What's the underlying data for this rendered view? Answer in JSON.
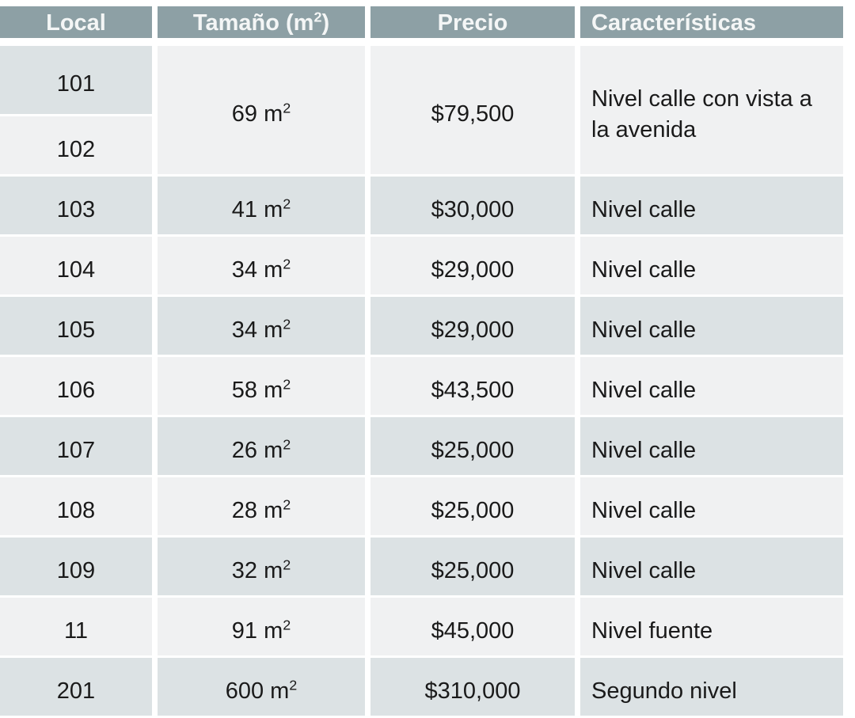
{
  "colors": {
    "header_bg": "#8da0a5",
    "header_text": "#f4f6f6",
    "row_dark": "#dce2e4",
    "row_light": "#f0f1f2",
    "cell_text": "#1a1a1a",
    "gap": "#ffffff"
  },
  "table": {
    "headers": {
      "local": "Local",
      "size": {
        "text": "Tamaño (m",
        "sup": "2",
        "close": ")"
      },
      "price": "Precio",
      "features": "Características"
    },
    "merged_group": {
      "local_a": "101",
      "local_b": "102",
      "size": {
        "text": "69 m",
        "sup": "2"
      },
      "price": "$79,500",
      "feature": "Nivel calle con vista a la avenida"
    },
    "rows": [
      {
        "local": "103",
        "size": {
          "text": "41 m",
          "sup": "2"
        },
        "price": "$30,000",
        "feature": "Nivel calle"
      },
      {
        "local": "104",
        "size": {
          "text": "34 m",
          "sup": "2"
        },
        "price": "$29,000",
        "feature": "Nivel calle"
      },
      {
        "local": "105",
        "size": {
          "text": "34 m",
          "sup": "2"
        },
        "price": "$29,000",
        "feature": "Nivel calle"
      },
      {
        "local": "106",
        "size": {
          "text": "58 m",
          "sup": "2"
        },
        "price": "$43,500",
        "feature": "Nivel calle"
      },
      {
        "local": "107",
        "size": {
          "text": "26 m",
          "sup": "2"
        },
        "price": "$25,000",
        "feature": "Nivel calle"
      },
      {
        "local": "108",
        "size": {
          "text": "28 m",
          "sup": "2"
        },
        "price": "$25,000",
        "feature": "Nivel calle"
      },
      {
        "local": "109",
        "size": {
          "text": "32 m",
          "sup": "2"
        },
        "price": "$25,000",
        "feature": "Nivel calle"
      },
      {
        "local": "11",
        "size": {
          "text": "91 m",
          "sup": "2"
        },
        "price": "$45,000",
        "feature": "Nivel fuente"
      },
      {
        "local": "201",
        "size": {
          "text": "600 m",
          "sup": "2"
        },
        "price": "$310,000",
        "feature": "Segundo nivel"
      }
    ]
  }
}
